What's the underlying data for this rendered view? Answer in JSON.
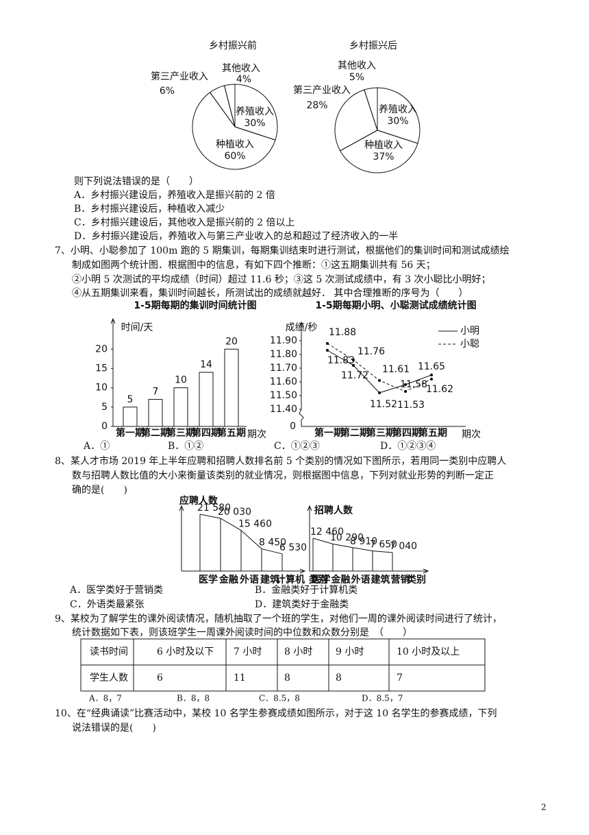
{
  "document": {
    "q6": {
      "prompt": "则下列说法错误的是（　　）",
      "options": [
        "A．乡村振兴建设后，养殖收入是振兴前的 2 倍",
        "B．乡村振兴建设后，种植收入减少",
        "C．乡村振兴建设后，其他收入是振兴前的 2 倍以上",
        "D．乡村振兴建设后，养殖收入与第三产业收入的总和超过了经济收入的一半"
      ]
    },
    "q7": {
      "lines": [
        "7、小明、小聪参加了 100m 跑的 5 期集训，每期集训结束时进行测试，根据他们的集训时间和测试成绩绘",
        "制成如图两个统计图．根据图中的信息，有如下四个推断：①这五期集训共有 56 天；",
        "②小明 5 次测试的平均成绩（时间）超过 11.6 秒；③这 5 次测试成绩中，有 3 次小聪比小明好；",
        "④从五期集训来看，集训时间越长，所测试出的成绩就越好．  其中合理推断的序号为（　　）"
      ],
      "options": [
        "A．①",
        "B．①②",
        "C．①②③",
        "D．①②③④"
      ]
    },
    "q8": {
      "lines": [
        "8、某人才市场 2019 年上半年应聘和招聘人数排名前 5 个类别的情况如下图所示，若用同一类别中应聘人",
        "数与招聘人数比值的大小来衡量该类别的就业情况，则根据图中信息，下列对就业形势的判断一定正",
        "确的是(　　)"
      ],
      "options": [
        "A．医学类好于营销类",
        "B．金融类好于计算机类",
        "C．外语类最紧张",
        "D．建筑类好于金融类"
      ]
    },
    "q9": {
      "lines": [
        "9、某校为了解学生的课外阅读情况，随机抽取了一个班的学生，对他们一周的课外阅读时间进行了统计，",
        "统计数据如下表，则该班学生一周课外阅读时间的中位数和众数分别是　（　　）"
      ],
      "table": {
        "header": [
          "读书时间",
          "6 小时及以下",
          "7 小时",
          "8 小时",
          "9 小时",
          "10 小时及以上"
        ],
        "rows": [
          [
            "学生人数",
            "6",
            "11",
            "8",
            "8",
            "7"
          ]
        ]
      },
      "options": [
        "A．8，7",
        "B．8，8",
        "C．8.5，8",
        "D．8.5，7"
      ]
    },
    "q10": {
      "lines": [
        "10、在“经典诵读”比赛活动中，某校 10 名学生参赛成绩如图所示，对于这 10 名学生的参赛成绩，下列",
        "说法错误的是(　　)"
      ]
    },
    "page_number": "2"
  },
  "chart_data": [
    {
      "type": "pie",
      "title": "乡村振兴前",
      "categories": [
        "养殖收入",
        "种植收入",
        "第三产业收入",
        "其他收入"
      ],
      "values": [
        30,
        60,
        6,
        4
      ],
      "value_labels": [
        "30%",
        "60%",
        "6%",
        "4%"
      ]
    },
    {
      "type": "pie",
      "title": "乡村振兴后",
      "categories": [
        "养殖收入",
        "种植收入",
        "第三产业收入",
        "其他收入"
      ],
      "values": [
        30,
        37,
        28,
        5
      ],
      "value_labels": [
        "30%",
        "37%",
        "28%",
        "5%"
      ]
    },
    {
      "type": "bar",
      "title": "1-5期每期的集训时间统计图",
      "y_label": "时间/天",
      "x_label": "期次",
      "categories": [
        "第一期",
        "第二期",
        "第三期",
        "第四期",
        "第五期"
      ],
      "values": [
        5,
        7,
        10,
        14,
        20
      ],
      "ylim": [
        0,
        22
      ],
      "yticks": [
        0,
        5,
        10,
        15,
        20
      ],
      "color": "#ffffff",
      "grid": false
    },
    {
      "type": "line",
      "title": "1-5期每期小明、小聪测试成绩统计图",
      "y_label": "成绩/秒",
      "x_label": "期次",
      "origin_label": "0",
      "categories": [
        "第一期",
        "第二期",
        "第三期",
        "第四期",
        "第五期"
      ],
      "series": [
        {
          "name": "小明",
          "color": "#000000",
          "style": "solid",
          "values": [
            11.83,
            11.72,
            11.52,
            11.58,
            11.65
          ]
        },
        {
          "name": "小聪",
          "color": "#000000",
          "style": "dashed",
          "values": [
            11.88,
            11.76,
            11.61,
            11.53,
            11.62
          ]
        }
      ],
      "ylim": [
        11.4,
        11.95
      ],
      "yticks": [
        {
          "value": 11.4,
          "label": "11.40"
        },
        {
          "value": 11.5,
          "label": "11.50"
        },
        {
          "value": 11.6,
          "label": "11.60"
        },
        {
          "value": 11.7,
          "label": "11.70"
        },
        {
          "value": 11.8,
          "label": "11.80"
        },
        {
          "value": 11.9,
          "label": "11.90"
        }
      ],
      "grid": false
    },
    {
      "type": "area",
      "y_label": "应聘人数",
      "x_label": "类别",
      "categories": [
        "医学",
        "金融",
        "外语",
        "建筑",
        "计算机"
      ],
      "values": [
        21580,
        20030,
        15460,
        8450,
        6530
      ],
      "value_labels": [
        "21 580",
        "20 030",
        "15 460",
        "8 450",
        "6 530"
      ],
      "ylim": [
        0,
        25000
      ]
    },
    {
      "type": "area",
      "y_label": "招聘人数",
      "x_label": "类别",
      "categories": [
        "医学",
        "金融",
        "外语",
        "建筑",
        "营销"
      ],
      "values": [
        12460,
        10290,
        8910,
        7650,
        7040
      ],
      "value_labels": [
        "12 460",
        "10 290",
        "8 910",
        "7 650",
        "7 040"
      ],
      "ylim": [
        0,
        25000
      ]
    }
  ]
}
